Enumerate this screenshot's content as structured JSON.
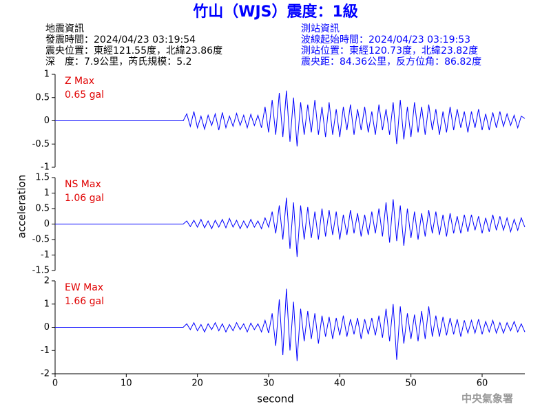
{
  "header": {
    "title": "竹山（WJS）震度：1級",
    "left": [
      "地震資訊",
      "發震時間：2024/04/23 03:19:54",
      "震央位置：東經121.55度，北緯23.86度",
      "深　度：7.9公里，芮氏規模：5.2"
    ],
    "right": [
      "測站資訊",
      "波線起始時間：2024/04/23 03:19:53",
      "測站位置：東經120.73度，北緯23.82度",
      "震央距：84.36公里，反方位角：86.82度"
    ]
  },
  "footer": "中央氣象署",
  "chart_data": {
    "type": "line",
    "xlabel": "second",
    "ylabel": "acceleration",
    "xlim": [
      0,
      66
    ],
    "xticks": [
      0,
      10,
      20,
      30,
      40,
      50,
      60
    ],
    "x": [
      0,
      5,
      10,
      15,
      18,
      18.5,
      19,
      19.5,
      20,
      20.5,
      21,
      21.5,
      22,
      22.5,
      23,
      23.5,
      24,
      24.5,
      25,
      25.5,
      26,
      26.5,
      27,
      27.5,
      28,
      28.5,
      29,
      29.5,
      30,
      30.5,
      31,
      31.5,
      32,
      32.5,
      33,
      33.5,
      34,
      34.5,
      35,
      35.5,
      36,
      36.5,
      37,
      37.5,
      38,
      38.5,
      39,
      39.5,
      40,
      40.5,
      41,
      41.5,
      42,
      42.5,
      43,
      43.5,
      44,
      44.5,
      45,
      45.5,
      46,
      46.5,
      47,
      47.5,
      48,
      48.5,
      49,
      49.5,
      50,
      50.5,
      51,
      51.5,
      52,
      52.5,
      53,
      53.5,
      54,
      54.5,
      55,
      55.5,
      56,
      56.5,
      57,
      57.5,
      58,
      58.5,
      59,
      59.5,
      60,
      60.5,
      61,
      61.5,
      62,
      62.5,
      63,
      63.5,
      64,
      64.5,
      65,
      65.5,
      66
    ],
    "panels": [
      {
        "label": "Z Max",
        "max_label": "0.65 gal",
        "color": "#0000ff",
        "ylim": [
          -1,
          1
        ],
        "yticks": [
          -1,
          -0.5,
          0,
          0.5,
          1
        ],
        "values": [
          0,
          0,
          0,
          0,
          0,
          0.15,
          -0.12,
          0.2,
          -0.15,
          0.1,
          -0.18,
          0.12,
          -0.1,
          0.15,
          -0.2,
          0.18,
          -0.15,
          0.1,
          -0.12,
          0.16,
          -0.1,
          0.12,
          -0.15,
          0.14,
          -0.1,
          0.12,
          -0.15,
          0.3,
          -0.25,
          0.45,
          -0.3,
          0.6,
          -0.35,
          0.65,
          -0.45,
          0.5,
          -0.55,
          0.4,
          -0.3,
          0.35,
          -0.25,
          0.45,
          -0.3,
          0.3,
          -0.35,
          0.4,
          -0.3,
          0.25,
          -0.35,
          0.3,
          -0.2,
          0.35,
          -0.3,
          0.25,
          -0.2,
          0.3,
          -0.25,
          0.2,
          -0.3,
          0.35,
          -0.2,
          0.25,
          -0.3,
          0.4,
          -0.5,
          0.45,
          -0.4,
          0.3,
          -0.35,
          0.4,
          -0.25,
          0.3,
          -0.3,
          0.35,
          -0.2,
          0.25,
          -0.3,
          0.2,
          -0.25,
          0.3,
          -0.2,
          0.25,
          -0.15,
          0.2,
          -0.25,
          0.2,
          -0.15,
          0.25,
          -0.2,
          0.15,
          -0.2,
          0.18,
          -0.15,
          0.2,
          -0.12,
          0.15,
          -0.1,
          0.12,
          -0.15,
          0.1,
          0.05
        ]
      },
      {
        "label": "NS Max",
        "max_label": "1.06 gal",
        "color": "#0000ff",
        "ylim": [
          -1.5,
          1.5
        ],
        "yticks": [
          -1.5,
          -1,
          -0.5,
          0,
          0.5,
          1,
          1.5
        ],
        "values": [
          0,
          0,
          0,
          0,
          0,
          0.1,
          -0.08,
          0.12,
          -0.1,
          0.15,
          -0.12,
          0.1,
          -0.15,
          0.12,
          -0.1,
          0.15,
          -0.12,
          0.18,
          -0.1,
          0.12,
          -0.15,
          0.1,
          -0.12,
          0.15,
          -0.1,
          0.1,
          -0.15,
          0.2,
          -0.1,
          0.4,
          -0.3,
          0.6,
          -0.5,
          0.85,
          -0.8,
          0.7,
          -1.06,
          0.6,
          -0.5,
          0.55,
          -0.45,
          0.4,
          -0.5,
          0.5,
          -0.4,
          0.45,
          -0.35,
          0.4,
          -0.5,
          0.3,
          -0.35,
          0.45,
          -0.3,
          0.35,
          -0.4,
          0.3,
          -0.35,
          0.4,
          -0.3,
          0.5,
          -0.4,
          0.7,
          -0.6,
          0.8,
          -0.55,
          0.6,
          -0.7,
          0.5,
          -0.45,
          0.4,
          -0.5,
          0.35,
          -0.4,
          0.45,
          -0.3,
          0.4,
          -0.35,
          0.3,
          -0.4,
          0.35,
          -0.3,
          0.25,
          -0.3,
          0.3,
          -0.25,
          0.3,
          -0.2,
          0.25,
          -0.3,
          0.2,
          -0.25,
          0.3,
          -0.2,
          0.25,
          -0.2,
          0.2,
          -0.25,
          0.15,
          -0.2,
          0.2,
          -0.1
        ]
      },
      {
        "label": "EW Max",
        "max_label": "1.66 gal",
        "color": "#0000ff",
        "ylim": [
          -2,
          2
        ],
        "yticks": [
          -2,
          -1,
          0,
          1,
          2
        ],
        "values": [
          0,
          0,
          0,
          0,
          0,
          0.15,
          -0.1,
          0.2,
          -0.15,
          0.12,
          -0.2,
          0.15,
          -0.1,
          0.2,
          -0.15,
          0.15,
          -0.2,
          0.12,
          -0.15,
          0.2,
          -0.1,
          0.15,
          -0.2,
          0.18,
          -0.1,
          0.15,
          -0.2,
          0.3,
          -0.25,
          0.6,
          -0.8,
          1.2,
          -1.2,
          1.66,
          -1.0,
          1.1,
          -1.45,
          0.8,
          -0.6,
          0.7,
          -0.5,
          0.6,
          -0.7,
          0.5,
          -0.4,
          0.45,
          -0.5,
          0.4,
          -0.35,
          0.5,
          -0.4,
          0.35,
          -0.3,
          0.4,
          -0.5,
          0.35,
          -0.3,
          0.4,
          -0.35,
          0.5,
          -0.45,
          0.8,
          -0.6,
          1.0,
          -1.4,
          0.9,
          -0.7,
          0.6,
          -0.5,
          0.55,
          -0.6,
          0.7,
          -0.5,
          0.9,
          -0.4,
          0.5,
          -0.4,
          0.45,
          -0.35,
          0.4,
          -0.3,
          0.35,
          -0.4,
          0.3,
          -0.25,
          0.3,
          -0.25,
          0.35,
          -0.3,
          0.25,
          -0.2,
          0.3,
          -0.25,
          0.2,
          -0.25,
          0.2,
          -0.15,
          0.25,
          -0.2,
          0.15,
          -0.2
        ]
      }
    ]
  }
}
